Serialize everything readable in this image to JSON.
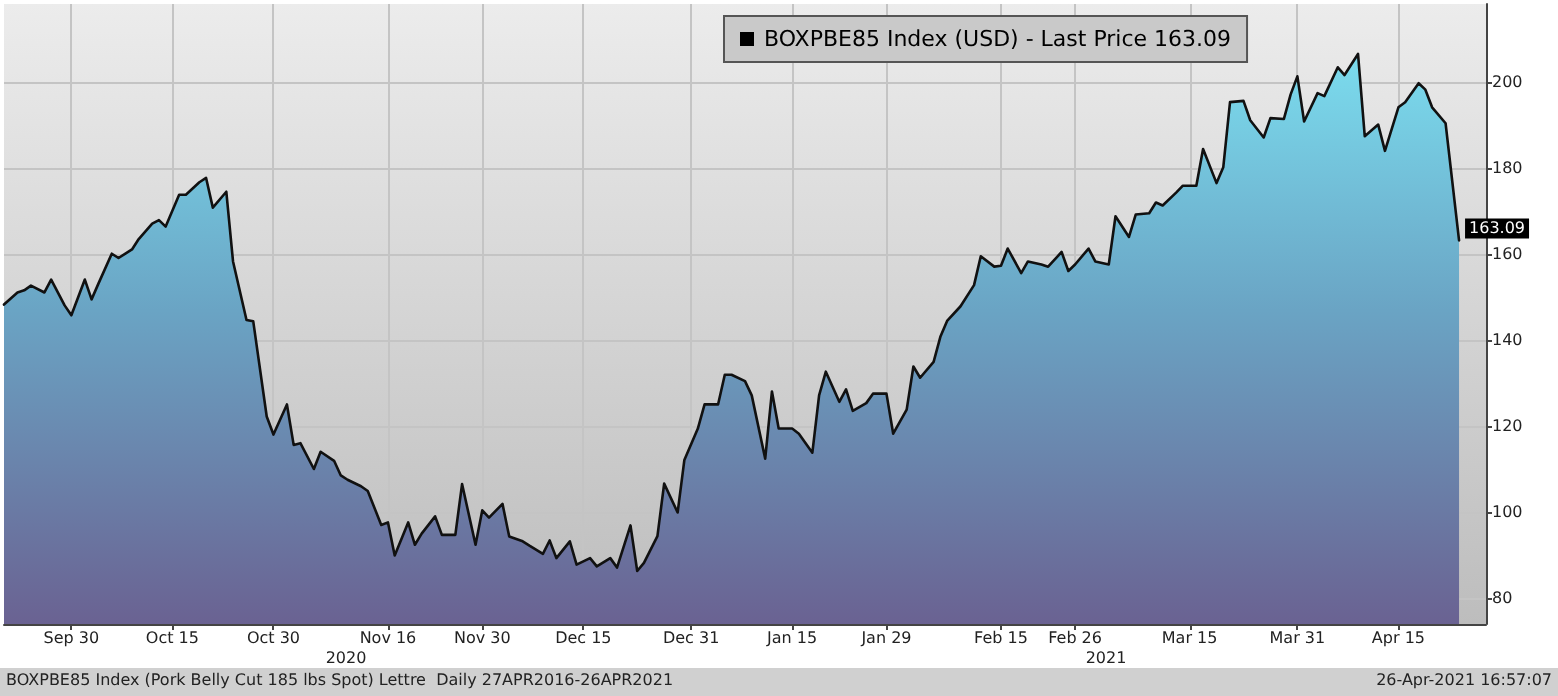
{
  "chart_data": {
    "type": "area",
    "legend": "top",
    "grid": true,
    "marker": "none",
    "line_style": "solid",
    "x": [
      "2020-09-20",
      "2020-09-22",
      "2020-09-23",
      "2020-09-24",
      "2020-09-26",
      "2020-09-27",
      "2020-09-29",
      "2020-09-30",
      "2020-10-02",
      "2020-10-03",
      "2020-10-04",
      "2020-10-06",
      "2020-10-07",
      "2020-10-09",
      "2020-10-10",
      "2020-10-12",
      "2020-10-13",
      "2020-10-14",
      "2020-10-16",
      "2020-10-17",
      "2020-10-19",
      "2020-10-20",
      "2020-10-21",
      "2020-10-23",
      "2020-10-24",
      "2020-10-26",
      "2020-10-27",
      "2020-10-29",
      "2020-10-30",
      "2020-11-01",
      "2020-11-02",
      "2020-11-03",
      "2020-11-05",
      "2020-11-06",
      "2020-11-08",
      "2020-11-09",
      "2020-11-10",
      "2020-11-12",
      "2020-11-13",
      "2020-11-15",
      "2020-11-16",
      "2020-11-17",
      "2020-11-19",
      "2020-11-20",
      "2020-11-21",
      "2020-11-23",
      "2020-11-24",
      "2020-11-26",
      "2020-11-27",
      "2020-11-29",
      "2020-11-30",
      "2020-12-01",
      "2020-12-03",
      "2020-12-04",
      "2020-12-06",
      "2020-12-07",
      "2020-12-09",
      "2020-12-10",
      "2020-12-11",
      "2020-12-13",
      "2020-12-14",
      "2020-12-16",
      "2020-12-17",
      "2020-12-19",
      "2020-12-20",
      "2020-12-22",
      "2020-12-23",
      "2020-12-24",
      "2020-12-26",
      "2020-12-27",
      "2020-12-29",
      "2020-12-30",
      "2021-01-01",
      "2021-01-02",
      "2021-01-04",
      "2021-01-05",
      "2021-01-06",
      "2021-01-08",
      "2021-01-09",
      "2021-01-11",
      "2021-01-12",
      "2021-01-13",
      "2021-01-15",
      "2021-01-16",
      "2021-01-18",
      "2021-01-19",
      "2021-01-20",
      "2021-01-22",
      "2021-01-23",
      "2021-01-24",
      "2021-01-26",
      "2021-01-27",
      "2021-01-29",
      "2021-01-30",
      "2021-02-01",
      "2021-02-02",
      "2021-02-03",
      "2021-02-05",
      "2021-02-06",
      "2021-02-07",
      "2021-02-09",
      "2021-02-11",
      "2021-02-12",
      "2021-02-14",
      "2021-02-15",
      "2021-02-16",
      "2021-02-18",
      "2021-02-19",
      "2021-02-21",
      "2021-02-22",
      "2021-02-24",
      "2021-02-25",
      "2021-02-26",
      "2021-02-28",
      "2021-03-01",
      "2021-03-03",
      "2021-03-04",
      "2021-03-06",
      "2021-03-07",
      "2021-03-09",
      "2021-03-10",
      "2021-03-11",
      "2021-03-13",
      "2021-03-14",
      "2021-03-16",
      "2021-03-17",
      "2021-03-19",
      "2021-03-20",
      "2021-03-21",
      "2021-03-23",
      "2021-03-24",
      "2021-03-26",
      "2021-03-27",
      "2021-03-29",
      "2021-03-30",
      "2021-03-31",
      "2021-04-01",
      "2021-04-03",
      "2021-04-04",
      "2021-04-06",
      "2021-04-07",
      "2021-04-09",
      "2021-04-10",
      "2021-04-12",
      "2021-04-13",
      "2021-04-15",
      "2021-04-16",
      "2021-04-18",
      "2021-04-19",
      "2021-04-20",
      "2021-04-22",
      "2021-04-24"
    ],
    "series": [
      {
        "name": "BOXPBE85 Index (USD) - Last Price 163.09",
        "color": "#111111",
        "values": [
          148.2,
          151,
          151.5,
          152.6,
          151,
          154,
          148,
          145.7,
          154,
          149.4,
          153,
          160,
          159,
          161,
          163.4,
          167,
          167.8,
          166.3,
          173.7,
          173.7,
          176.6,
          177.6,
          170.7,
          174.4,
          158.2,
          144.6,
          144.3,
          122.2,
          118,
          125,
          115.6,
          116,
          110,
          114,
          111.9,
          108.5,
          107.5,
          106,
          104.9,
          97,
          97.6,
          89.9,
          97.6,
          92.4,
          95,
          99,
          94.7,
          94.7,
          106.5,
          92.4,
          100.4,
          98.7,
          101.9,
          94.3,
          93.2,
          92.2,
          90.3,
          93.4,
          89.3,
          93.2,
          87.8,
          89.3,
          87.4,
          89.3,
          87.1,
          96.9,
          86.3,
          88.2,
          94.4,
          106.6,
          99.9,
          112.1,
          119.4,
          125,
          125,
          131.9,
          131.9,
          130.4,
          127.1,
          112.4,
          128,
          119.4,
          119.4,
          118.2,
          113.8,
          127.1,
          132.6,
          125.6,
          128.5,
          123.5,
          125.3,
          127.5,
          127.5,
          118.2,
          123.8,
          133.8,
          131.2,
          134.9,
          140.7,
          144.4,
          147.8,
          152.7,
          159.4,
          157,
          157.2,
          161.2,
          155.5,
          158.2,
          157.5,
          157,
          160.4,
          156,
          157.5,
          161.2,
          158.2,
          157.5,
          168.7,
          163.9,
          169.1,
          169.4,
          171.9,
          171.2,
          174.2,
          175.8,
          175.8,
          184.3,
          176.4,
          180.1,
          195.2,
          195.5,
          191,
          187,
          191.5,
          191.3,
          197,
          201.2,
          190.7,
          197.3,
          196.6,
          203.3,
          201.5,
          206.4,
          187.3,
          190,
          183.9,
          194,
          195.2,
          199.6,
          198.1,
          194,
          190.3,
          163.09
        ],
        "value_labels": [
          null,
          null,
          null,
          null,
          null,
          null,
          null,
          null,
          null,
          null,
          null,
          null,
          null,
          null,
          null,
          null,
          null,
          null,
          null,
          null,
          null,
          null,
          null,
          null,
          null,
          null,
          null,
          null,
          null,
          null,
          null,
          null,
          null,
          null,
          null,
          null,
          null,
          null,
          null,
          null,
          null,
          null,
          null,
          null,
          null,
          null,
          null,
          null,
          null,
          null,
          null,
          null,
          null,
          null,
          null,
          null,
          null,
          null,
          null,
          null,
          null,
          null,
          null,
          null,
          null,
          null,
          null,
          null,
          null,
          null,
          null,
          null,
          null,
          null,
          null,
          null,
          null,
          null,
          null,
          null,
          null,
          null,
          null,
          null,
          null,
          null,
          null,
          null,
          null,
          null,
          null,
          null,
          null,
          null,
          null,
          null,
          null,
          null,
          null,
          null,
          null,
          null,
          null,
          null,
          null,
          null,
          null,
          null,
          null,
          null,
          null,
          null,
          null,
          null,
          null,
          null,
          null,
          null,
          null,
          null,
          null,
          null,
          null,
          null,
          null,
          null,
          null,
          null,
          null,
          null,
          null,
          null,
          null,
          null,
          null,
          null,
          null,
          null,
          null,
          null,
          null,
          null,
          null,
          null,
          null,
          null,
          null,
          null,
          null,
          null,
          null,
          "163.09"
        ]
      }
    ],
    "xlim": [
      "2020-09-20",
      "2021-04-28"
    ],
    "xticks": [
      {
        "value": "2020-09-30",
        "label": "Sep 30"
      },
      {
        "value": "2020-10-15",
        "label": "Oct 15"
      },
      {
        "value": "2020-10-30",
        "label": "Oct 30"
      },
      {
        "value": "2020-11-16",
        "label": "Nov 16"
      },
      {
        "value": "2020-11-30",
        "label": "Nov 30"
      },
      {
        "value": "2020-12-15",
        "label": "Dec 15"
      },
      {
        "value": "2020-12-31",
        "label": "Dec 31"
      },
      {
        "value": "2021-01-15",
        "label": "Jan 15"
      },
      {
        "value": "2021-01-29",
        "label": "Jan 29"
      },
      {
        "value": "2021-02-15",
        "label": "Feb 15"
      },
      {
        "value": "2021-02-26",
        "label": "Feb 26"
      },
      {
        "value": "2021-03-15",
        "label": "Mar 15"
      },
      {
        "value": "2021-03-31",
        "label": "Mar 31"
      },
      {
        "value": "2021-04-15",
        "label": "Apr 15"
      }
    ],
    "ylim": [
      74,
      218
    ],
    "yticks": [
      80,
      100,
      120,
      140,
      160,
      180,
      200
    ],
    "annotations": [
      "2020",
      "2021",
      "BOXPBE85 Index (Pork Belly Cut 185 lbs Spot) Lettre  Daily 27APR2016-26APR2021",
      "26-Apr-2021 16:57:07"
    ]
  }
}
